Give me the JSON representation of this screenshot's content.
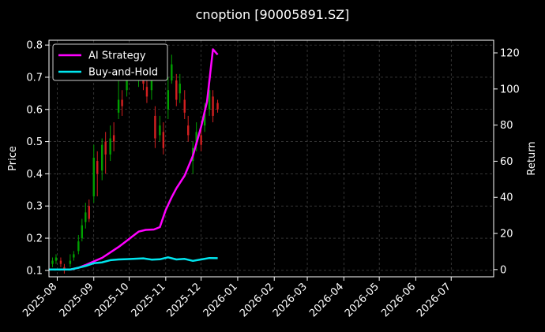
{
  "chart_data": {
    "type": "line",
    "title": "cnoption [90005891.SZ]",
    "xlabel": "",
    "ylabel": "Price",
    "y2label": "Return",
    "grid": true,
    "legend_position": "top-left",
    "background": "#000000",
    "x_axis": {
      "type": "date",
      "range": [
        "2025-07-25",
        "2026-08-06"
      ],
      "tick_labels": [
        "2025-08",
        "2025-09",
        "2025-10",
        "2025-11",
        "2025-12",
        "2026-01",
        "2026-02",
        "2026-03",
        "2026-04",
        "2026-05",
        "2026-06",
        "2026-07"
      ],
      "tick_dates": [
        "2025-08-01",
        "2025-09-01",
        "2025-10-01",
        "2025-11-01",
        "2025-12-01",
        "2026-01-01",
        "2026-02-01",
        "2026-03-01",
        "2026-04-01",
        "2026-05-01",
        "2026-06-01",
        "2026-07-01"
      ]
    },
    "y_left": {
      "label": "Price",
      "range": [
        0.08,
        0.815
      ],
      "ticks": [
        0.1,
        0.2,
        0.3,
        0.4,
        0.5,
        0.6,
        0.7,
        0.8
      ],
      "tick_labels": [
        "0.1",
        "0.2",
        "0.3",
        "0.4",
        "0.5",
        "0.6",
        "0.7",
        "0.8"
      ]
    },
    "y_right": {
      "label": "Return",
      "range": [
        -4,
        127
      ],
      "ticks": [
        0,
        20,
        40,
        60,
        80,
        100,
        120
      ],
      "tick_labels": [
        "0",
        "20",
        "40",
        "60",
        "80",
        "100",
        "120"
      ]
    },
    "colors": {
      "up": "#00a000",
      "down": "#d42020",
      "grid": "#555555"
    },
    "candles": [
      {
        "d": "2025-07-28",
        "o": 0.12,
        "c": 0.13,
        "h": 0.14,
        "l": 0.11
      },
      {
        "d": "2025-07-31",
        "o": 0.13,
        "c": 0.14,
        "h": 0.15,
        "l": 0.12
      },
      {
        "d": "2025-08-04",
        "o": 0.13,
        "c": 0.12,
        "h": 0.14,
        "l": 0.11
      },
      {
        "d": "2025-08-07",
        "o": 0.11,
        "c": 0.1,
        "h": 0.12,
        "l": 0.09
      },
      {
        "d": "2025-08-12",
        "o": 0.12,
        "c": 0.13,
        "h": 0.15,
        "l": 0.11
      },
      {
        "d": "2025-08-15",
        "o": 0.14,
        "c": 0.15,
        "h": 0.16,
        "l": 0.13
      },
      {
        "d": "2025-08-19",
        "o": 0.16,
        "c": 0.19,
        "h": 0.21,
        "l": 0.15
      },
      {
        "d": "2025-08-22",
        "o": 0.2,
        "c": 0.24,
        "h": 0.26,
        "l": 0.19
      },
      {
        "d": "2025-08-25",
        "o": 0.25,
        "c": 0.28,
        "h": 0.31,
        "l": 0.23
      },
      {
        "d": "2025-08-28",
        "o": 0.3,
        "c": 0.26,
        "h": 0.32,
        "l": 0.25
      },
      {
        "d": "2025-09-01",
        "o": 0.33,
        "c": 0.45,
        "h": 0.49,
        "l": 0.31
      },
      {
        "d": "2025-09-04",
        "o": 0.44,
        "c": 0.4,
        "h": 0.47,
        "l": 0.33
      },
      {
        "d": "2025-09-08",
        "o": 0.41,
        "c": 0.49,
        "h": 0.51,
        "l": 0.38
      },
      {
        "d": "2025-09-11",
        "o": 0.5,
        "c": 0.46,
        "h": 0.53,
        "l": 0.4
      },
      {
        "d": "2025-09-15",
        "o": 0.46,
        "c": 0.51,
        "h": 0.55,
        "l": 0.44
      },
      {
        "d": "2025-09-18",
        "o": 0.52,
        "c": 0.5,
        "h": 0.56,
        "l": 0.47
      },
      {
        "d": "2025-09-22",
        "o": 0.59,
        "c": 0.63,
        "h": 0.69,
        "l": 0.57
      },
      {
        "d": "2025-09-25",
        "o": 0.63,
        "c": 0.61,
        "h": 0.66,
        "l": 0.58
      },
      {
        "d": "2025-09-29",
        "o": 0.66,
        "c": 0.7,
        "h": 0.73,
        "l": 0.64
      },
      {
        "d": "2025-10-09",
        "o": 0.7,
        "c": 0.73,
        "h": 0.75,
        "l": 0.67
      },
      {
        "d": "2025-10-13",
        "o": 0.72,
        "c": 0.68,
        "h": 0.74,
        "l": 0.66
      },
      {
        "d": "2025-10-16",
        "o": 0.67,
        "c": 0.64,
        "h": 0.7,
        "l": 0.62
      },
      {
        "d": "2025-10-20",
        "o": 0.66,
        "c": 0.71,
        "h": 0.74,
        "l": 0.63
      },
      {
        "d": "2025-10-23",
        "o": 0.58,
        "c": 0.51,
        "h": 0.61,
        "l": 0.48
      },
      {
        "d": "2025-10-27",
        "o": 0.52,
        "c": 0.55,
        "h": 0.58,
        "l": 0.5
      },
      {
        "d": "2025-10-30",
        "o": 0.53,
        "c": 0.48,
        "h": 0.56,
        "l": 0.46
      },
      {
        "d": "2025-11-03",
        "o": 0.6,
        "c": 0.66,
        "h": 0.7,
        "l": 0.57
      },
      {
        "d": "2025-11-06",
        "o": 0.69,
        "c": 0.74,
        "h": 0.77,
        "l": 0.68
      },
      {
        "d": "2025-11-10",
        "o": 0.69,
        "c": 0.63,
        "h": 0.71,
        "l": 0.61
      },
      {
        "d": "2025-11-13",
        "o": 0.65,
        "c": 0.68,
        "h": 0.71,
        "l": 0.62
      },
      {
        "d": "2025-11-17",
        "o": 0.63,
        "c": 0.59,
        "h": 0.66,
        "l": 0.57
      },
      {
        "d": "2025-11-20",
        "o": 0.55,
        "c": 0.52,
        "h": 0.58,
        "l": 0.5
      },
      {
        "d": "2025-11-24",
        "o": 0.44,
        "c": 0.48,
        "h": 0.5,
        "l": 0.4
      },
      {
        "d": "2025-11-27",
        "o": 0.49,
        "c": 0.53,
        "h": 0.56,
        "l": 0.47
      },
      {
        "d": "2025-12-01",
        "o": 0.52,
        "c": 0.49,
        "h": 0.54,
        "l": 0.47
      },
      {
        "d": "2025-12-04",
        "o": 0.55,
        "c": 0.59,
        "h": 0.62,
        "l": 0.53
      },
      {
        "d": "2025-12-08",
        "o": 0.6,
        "c": 0.66,
        "h": 0.68,
        "l": 0.58
      },
      {
        "d": "2025-12-11",
        "o": 0.64,
        "c": 0.58,
        "h": 0.66,
        "l": 0.56
      },
      {
        "d": "2025-12-15",
        "o": 0.62,
        "c": 0.6,
        "h": 0.63,
        "l": 0.59
      }
    ],
    "series": [
      {
        "name": "AI Strategy",
        "color": "#ff00ff",
        "axis": "right",
        "points": [
          [
            "2025-07-25",
            0
          ],
          [
            "2025-08-12",
            0
          ],
          [
            "2025-08-19",
            1
          ],
          [
            "2025-08-25",
            2.5
          ],
          [
            "2025-09-01",
            4.5
          ],
          [
            "2025-09-08",
            6.5
          ],
          [
            "2025-09-15",
            9.5
          ],
          [
            "2025-09-22",
            12.5
          ],
          [
            "2025-09-29",
            16
          ],
          [
            "2025-10-03",
            18
          ],
          [
            "2025-10-09",
            21
          ],
          [
            "2025-10-15",
            22
          ],
          [
            "2025-10-22",
            22.2
          ],
          [
            "2025-10-27",
            23.5
          ],
          [
            "2025-11-01",
            33
          ],
          [
            "2025-11-06",
            40
          ],
          [
            "2025-11-10",
            45
          ],
          [
            "2025-11-17",
            52
          ],
          [
            "2025-11-24",
            63
          ],
          [
            "2025-12-01",
            79
          ],
          [
            "2025-12-06",
            93
          ],
          [
            "2025-12-11",
            122
          ],
          [
            "2025-12-15",
            119
          ]
        ]
      },
      {
        "name": "Buy-and-Hold",
        "color": "#00e5ee",
        "axis": "right",
        "points": [
          [
            "2025-07-25",
            0
          ],
          [
            "2025-08-12",
            0
          ],
          [
            "2025-08-19",
            1
          ],
          [
            "2025-08-25",
            2
          ],
          [
            "2025-09-01",
            3.5
          ],
          [
            "2025-09-08",
            4
          ],
          [
            "2025-09-15",
            5.2
          ],
          [
            "2025-09-22",
            5.6
          ],
          [
            "2025-09-29",
            5.8
          ],
          [
            "2025-10-06",
            6
          ],
          [
            "2025-10-13",
            6.2
          ],
          [
            "2025-10-20",
            5.5
          ],
          [
            "2025-10-27",
            5.7
          ],
          [
            "2025-11-03",
            6.8
          ],
          [
            "2025-11-10",
            5.6
          ],
          [
            "2025-11-17",
            5.9
          ],
          [
            "2025-11-24",
            4.8
          ],
          [
            "2025-12-01",
            5.6
          ],
          [
            "2025-12-08",
            6.4
          ],
          [
            "2025-12-15",
            6.3
          ]
        ]
      }
    ]
  }
}
